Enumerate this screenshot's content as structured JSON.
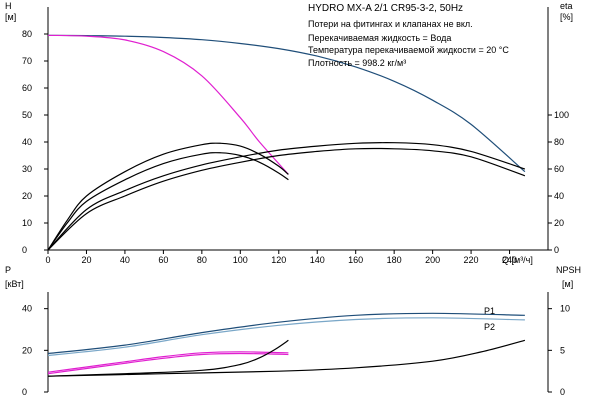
{
  "header": {
    "title": "HYDRO MX-A 2/1 CR95-3-2, 50Hz",
    "notes": [
      "Потери на фитингах и клапанах не вкл.",
      "Перекачиваемая жидкость = Вода",
      "Температура перекачиваемой жидкости = 20 °C",
      "Плотность = 998.2 кг/м³"
    ]
  },
  "colors": {
    "blue": "#1f4e79",
    "magenta": "#e020d0",
    "black": "#000000",
    "light_blue": "#7aa7c8"
  },
  "chart_data": [
    {
      "type": "line",
      "panel": "head-efficiency",
      "xlabel": "Q [м³/ч]",
      "ylabel": "H [м]",
      "ylabel2": "eta [%]",
      "xlim": [
        0,
        260
      ],
      "ylim": [
        0,
        90
      ],
      "y2lim": [
        0,
        180
      ],
      "xticks": [
        0,
        20,
        40,
        60,
        80,
        100,
        120,
        140,
        160,
        180,
        200,
        220,
        240
      ],
      "yticks": [
        0,
        10,
        20,
        30,
        40,
        50,
        60,
        70,
        80
      ],
      "y2ticks": [
        0,
        20,
        40,
        60,
        80,
        100
      ],
      "series": [
        {
          "color": "blue",
          "axis": "left",
          "x": [
            0,
            20,
            40,
            60,
            80,
            100,
            120,
            140,
            160,
            180,
            200,
            220,
            248
          ],
          "y": [
            79.5,
            79.4,
            79.2,
            78.7,
            77.9,
            76.5,
            74.6,
            71.8,
            67.8,
            62.5,
            55.5,
            46.5,
            29
          ]
        },
        {
          "color": "magenta",
          "axis": "left",
          "x": [
            0,
            20,
            40,
            60,
            80,
            100,
            110,
            125
          ],
          "y": [
            79.5,
            79.2,
            77.8,
            73.5,
            64.5,
            49,
            40,
            28
          ]
        },
        {
          "color": "black",
          "axis": "right",
          "x": [
            0,
            10,
            20,
            40,
            60,
            80,
            90,
            100,
            110,
            120,
            125
          ],
          "y": [
            0,
            22,
            40,
            58,
            71,
            78,
            79,
            77,
            71,
            62,
            56
          ]
        },
        {
          "color": "black",
          "axis": "right",
          "x": [
            0,
            10,
            20,
            40,
            60,
            80,
            90,
            100,
            110,
            120,
            125
          ],
          "y": [
            0,
            20,
            36,
            52,
            64,
            71,
            72,
            70,
            65,
            57,
            52
          ]
        },
        {
          "color": "black",
          "axis": "right",
          "x": [
            0,
            20,
            40,
            60,
            80,
            100,
            120,
            140,
            160,
            180,
            200,
            220,
            248
          ],
          "y": [
            0,
            30,
            44,
            55,
            63,
            69,
            74,
            77,
            79,
            79.5,
            78,
            73,
            60
          ]
        },
        {
          "color": "black",
          "axis": "right",
          "x": [
            0,
            20,
            40,
            60,
            80,
            100,
            120,
            140,
            160,
            180,
            200,
            220,
            248
          ],
          "y": [
            0,
            27,
            40,
            51,
            59,
            65,
            70,
            73,
            75,
            75,
            73.5,
            69,
            55
          ]
        }
      ]
    },
    {
      "type": "line",
      "panel": "power-npsh",
      "ylabel": "P [кВт]",
      "ylabel2": "NPSH [м]",
      "xlim": [
        0,
        260
      ],
      "ylim": [
        0,
        48
      ],
      "y2lim": [
        0,
        12
      ],
      "yticks": [
        0,
        20,
        40
      ],
      "y2ticks": [
        0,
        5,
        10
      ],
      "series": [
        {
          "name": "P1",
          "color": "blue",
          "axis": "left",
          "x": [
            0,
            40,
            80,
            120,
            160,
            200,
            248
          ],
          "y": [
            18.5,
            22.5,
            28.5,
            33.5,
            36.8,
            37.8,
            36.8
          ]
        },
        {
          "name": "P2",
          "color": "light_blue",
          "axis": "left",
          "x": [
            0,
            40,
            80,
            120,
            160,
            200,
            248
          ],
          "y": [
            17.5,
            21.5,
            27.5,
            32,
            34.8,
            35.6,
            34.6
          ]
        },
        {
          "color": "magenta",
          "axis": "left",
          "x": [
            0,
            20,
            40,
            60,
            80,
            100,
            125
          ],
          "y": [
            9.5,
            12,
            14.5,
            17,
            18.8,
            19.3,
            18.8
          ]
        },
        {
          "color": "magenta",
          "axis": "left",
          "x": [
            0,
            20,
            40,
            60,
            80,
            100,
            125
          ],
          "y": [
            8.8,
            11.3,
            13.8,
            16.2,
            18,
            18.5,
            18
          ]
        },
        {
          "color": "black",
          "axis": "right",
          "x": [
            0,
            40,
            80,
            100,
            110,
            118,
            125
          ],
          "y": [
            1.9,
            2.2,
            2.6,
            3.3,
            4.1,
            5.1,
            6.2
          ]
        },
        {
          "color": "black",
          "axis": "right",
          "x": [
            0,
            60,
            120,
            160,
            200,
            225,
            248
          ],
          "y": [
            1.9,
            2.2,
            2.5,
            2.9,
            3.7,
            4.8,
            6.2
          ]
        }
      ]
    }
  ]
}
